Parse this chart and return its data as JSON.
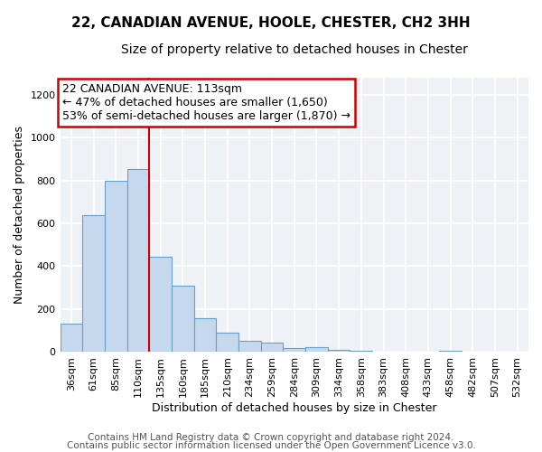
{
  "title": "22, CANADIAN AVENUE, HOOLE, CHESTER, CH2 3HH",
  "subtitle": "Size of property relative to detached houses in Chester",
  "xlabel": "Distribution of detached houses by size in Chester",
  "ylabel": "Number of detached properties",
  "bar_color": "#c5d8ed",
  "bar_edge_color": "#6a9fc8",
  "categories": [
    "36sqm",
    "61sqm",
    "85sqm",
    "110sqm",
    "135sqm",
    "160sqm",
    "185sqm",
    "210sqm",
    "234sqm",
    "259sqm",
    "284sqm",
    "309sqm",
    "334sqm",
    "358sqm",
    "383sqm",
    "408sqm",
    "433sqm",
    "458sqm",
    "482sqm",
    "507sqm",
    "532sqm"
  ],
  "values": [
    130,
    640,
    800,
    855,
    445,
    310,
    155,
    90,
    52,
    42,
    15,
    20,
    8,
    3,
    0,
    0,
    0,
    4,
    0,
    0,
    0
  ],
  "ylim": [
    0,
    1280
  ],
  "yticks": [
    0,
    200,
    400,
    600,
    800,
    1000,
    1200
  ],
  "annotation_title": "22 CANADIAN AVENUE: 113sqm",
  "annotation_line1": "← 47% of detached houses are smaller (1,650)",
  "annotation_line2": "53% of semi-detached houses are larger (1,870) →",
  "annotation_box_color": "#ffffff",
  "annotation_box_edge_color": "#cc0000",
  "vline_color": "#cc0000",
  "vline_x": 3.5,
  "footer1": "Contains HM Land Registry data © Crown copyright and database right 2024.",
  "footer2": "Contains public sector information licensed under the Open Government Licence v3.0.",
  "background_color": "#ffffff",
  "plot_bg_color": "#eef2f7",
  "grid_color": "#ffffff",
  "title_fontsize": 11,
  "subtitle_fontsize": 10,
  "axis_label_fontsize": 9,
  "tick_fontsize": 8,
  "annotation_fontsize": 9,
  "footer_fontsize": 7.5
}
